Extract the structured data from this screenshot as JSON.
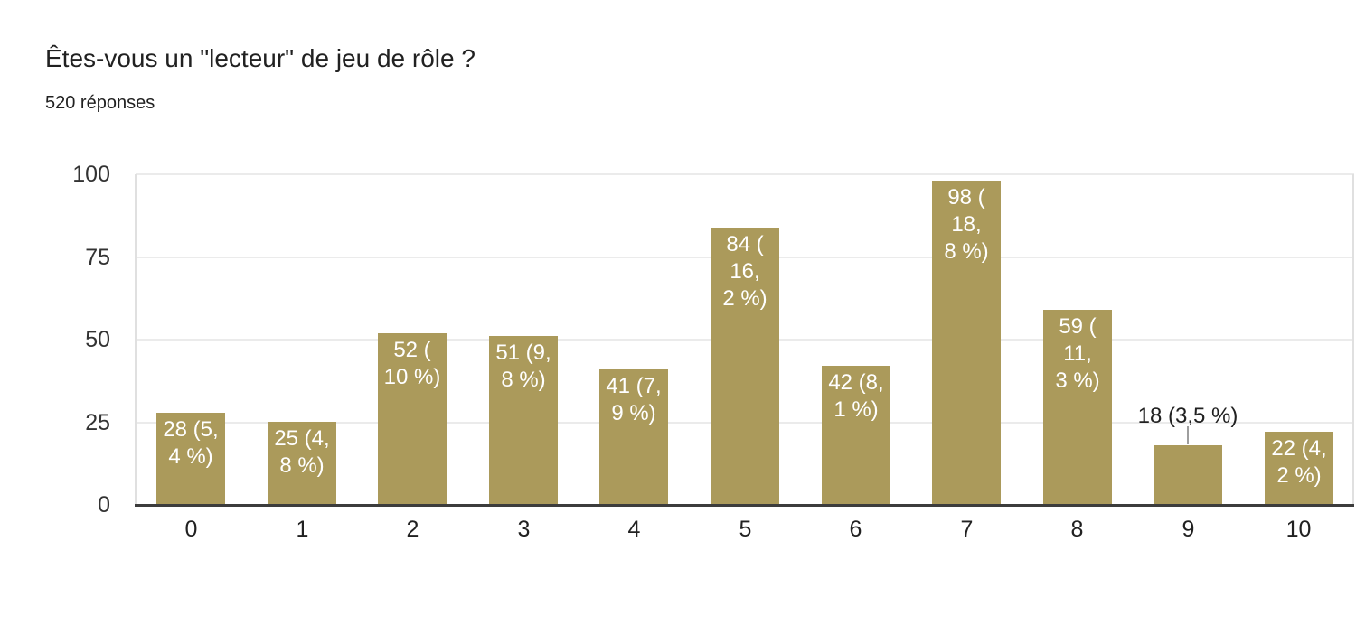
{
  "header": {
    "title": "Êtes-vous un \"lecteur\" de jeu de rôle ?",
    "subtitle": "520 réponses"
  },
  "colors": {
    "bar": "#AB9A5B",
    "bar_label_inside": "#ffffff",
    "bar_label_outside": "#212121",
    "gridline": "#ebebeb",
    "baseline": "#3c3c3c",
    "axis_text": "#333333",
    "title_text": "#212121"
  },
  "chart_data": {
    "type": "bar",
    "title": "Êtes-vous un \"lecteur\" de jeu de rôle ?",
    "subtitle": "520 réponses",
    "xlabel": "",
    "ylabel": "",
    "categories": [
      "0",
      "1",
      "2",
      "3",
      "4",
      "5",
      "6",
      "7",
      "8",
      "9",
      "10"
    ],
    "values": [
      28,
      25,
      52,
      51,
      41,
      84,
      42,
      98,
      59,
      18,
      22
    ],
    "total_responses": 520,
    "bar_labels": [
      {
        "text": "28 (5,4 %)",
        "lines": [
          "28 (5,",
          "4 %)"
        ],
        "placement": "inside"
      },
      {
        "text": "25 (4,8 %)",
        "lines": [
          "25 (4,",
          "8 %)"
        ],
        "placement": "inside"
      },
      {
        "text": "52 (10 %)",
        "lines": [
          "52 (",
          "10 %)"
        ],
        "placement": "inside"
      },
      {
        "text": "51 (9,8 %)",
        "lines": [
          "51 (9,",
          "8 %)"
        ],
        "placement": "inside"
      },
      {
        "text": "41 (7,9 %)",
        "lines": [
          "41 (7,",
          "9 %)"
        ],
        "placement": "inside"
      },
      {
        "text": "84 (16,2 %)",
        "lines": [
          "84 (",
          "16,",
          "2 %)"
        ],
        "placement": "inside"
      },
      {
        "text": "42 (8,1 %)",
        "lines": [
          "42 (8,",
          "1 %)"
        ],
        "placement": "inside"
      },
      {
        "text": "98 (18,8 %)",
        "lines": [
          "98 (",
          "18,",
          "8 %)"
        ],
        "placement": "inside"
      },
      {
        "text": "59 (11,3 %)",
        "lines": [
          "59 (",
          "11,",
          "3 %)"
        ],
        "placement": "inside"
      },
      {
        "text": "18 (3,5 %)",
        "lines": [
          "18 (3,5 %)"
        ],
        "placement": "outside"
      },
      {
        "text": "22 (4,2 %)",
        "lines": [
          "22 (4,",
          "2 %)"
        ],
        "placement": "inside"
      }
    ],
    "yticks": [
      0,
      25,
      50,
      75,
      100
    ],
    "ylim": [
      0,
      100
    ],
    "grid": true,
    "legend": "none"
  }
}
